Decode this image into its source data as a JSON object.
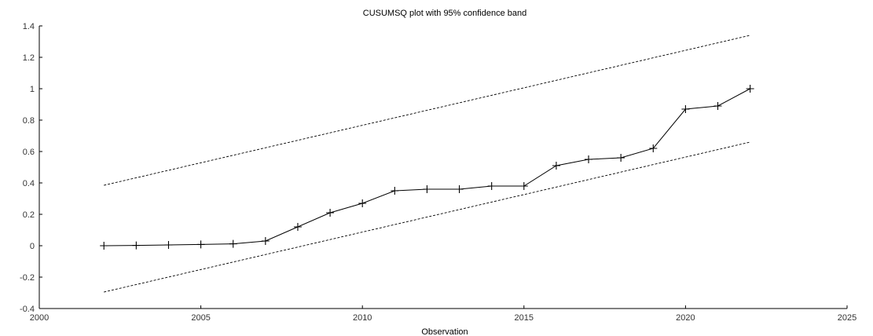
{
  "chart_data": {
    "type": "line",
    "title": "CUSUMSQ plot with 95% confidence band",
    "xlabel": "Observation",
    "ylabel": "",
    "xlim": [
      2000,
      2025
    ],
    "ylim": [
      -0.4,
      1.4
    ],
    "xticks": [
      2000,
      2005,
      2010,
      2015,
      2020,
      2025
    ],
    "yticks": [
      -0.4,
      -0.2,
      0,
      0.2,
      0.4,
      0.6,
      0.8,
      1,
      1.2,
      1.4
    ],
    "grid": false,
    "legend": "none",
    "x": [
      2002,
      2003,
      2004,
      2005,
      2006,
      2007,
      2008,
      2009,
      2010,
      2011,
      2012,
      2013,
      2014,
      2015,
      2016,
      2017,
      2018,
      2019,
      2020,
      2021,
      2022
    ],
    "series": [
      {
        "style": "solid-with-plus-markers",
        "color": "#000000",
        "values": [
          0.0,
          0.002,
          0.005,
          0.008,
          0.012,
          0.03,
          0.12,
          0.21,
          0.27,
          0.35,
          0.36,
          0.36,
          0.38,
          0.38,
          0.51,
          0.55,
          0.56,
          0.62,
          0.87,
          0.89,
          1.0
        ]
      },
      {
        "style": "dashed",
        "color": "#000000",
        "x": [
          2002,
          2022
        ],
        "values": [
          0.385,
          1.34
        ]
      },
      {
        "style": "dashed",
        "color": "#000000",
        "x": [
          2002,
          2022
        ],
        "values": [
          -0.295,
          0.66
        ]
      }
    ]
  }
}
